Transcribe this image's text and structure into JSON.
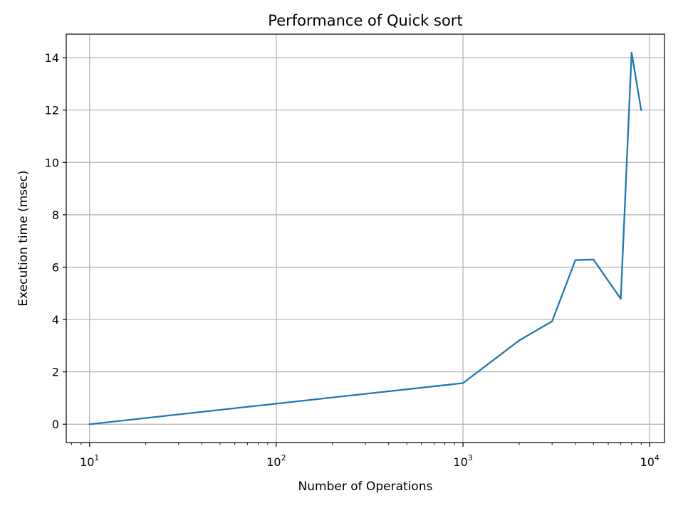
{
  "chart_data": {
    "type": "line",
    "title": "Performance of Quick sort",
    "xlabel": "Number of Operations",
    "ylabel": "Execution time (msec)",
    "x_scale": "log",
    "xlim": [
      7.5,
      12000
    ],
    "ylim": [
      -0.7,
      14.9
    ],
    "grid": true,
    "line_color": "#1f77b4",
    "grid_color": "#b0b0b0",
    "x_ticks": [
      {
        "value": 10,
        "base": "10",
        "exp": "1"
      },
      {
        "value": 100,
        "base": "10",
        "exp": "2"
      },
      {
        "value": 1000,
        "base": "10",
        "exp": "3"
      },
      {
        "value": 10000,
        "base": "10",
        "exp": "4"
      }
    ],
    "y_ticks": [
      0,
      2,
      4,
      6,
      8,
      10,
      12,
      14
    ],
    "series": [
      {
        "x": [
          10,
          1000,
          2000,
          3000,
          4000,
          5000,
          7000,
          8000,
          9000
        ],
        "y": [
          0.0,
          1.57,
          3.2,
          3.93,
          6.27,
          6.29,
          4.79,
          14.2,
          12.0
        ]
      }
    ]
  }
}
